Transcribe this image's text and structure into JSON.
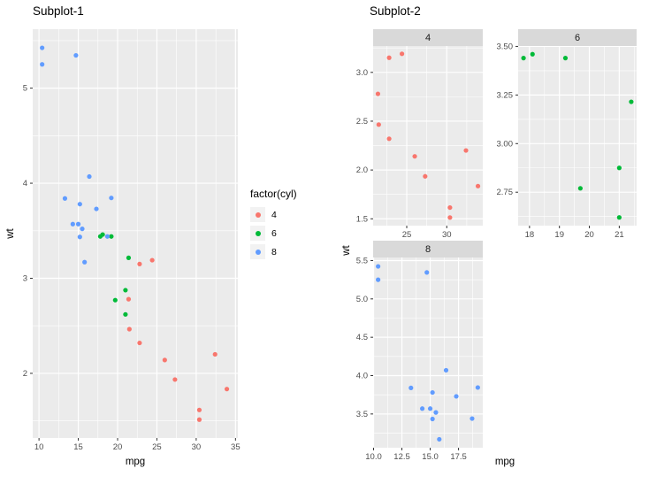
{
  "theme": {
    "background": "#FFFFFF",
    "panel_bg": "#EBEBEB",
    "strip_bg": "#D9D9D9",
    "grid": "#FFFFFF",
    "tick_text": "#4D4D4D",
    "tick_mark": "#333333",
    "strip_text": "#1A1A1A",
    "key_bg": "#F2F2F2"
  },
  "legend": {
    "title": "factor(cyl)",
    "items": [
      {
        "label": "4",
        "color": "#F8766D"
      },
      {
        "label": "6",
        "color": "#00BA38"
      },
      {
        "label": "8",
        "color": "#619CFF"
      }
    ]
  },
  "chart_data": [
    {
      "type": "scatter",
      "title": "Subplot-1",
      "xlabel": "mpg",
      "ylabel": "wt",
      "legend_title": "factor(cyl)",
      "legend_position": "right",
      "grid": true,
      "xlim": [
        9.2,
        35.3
      ],
      "ylim": [
        1.32,
        5.62
      ],
      "xticks": [
        10,
        15,
        20,
        25,
        30,
        35
      ],
      "xtick_labels": [
        "10",
        "15",
        "20",
        "25",
        "30",
        "35"
      ],
      "yticks": [
        2,
        3,
        4,
        5
      ],
      "ytick_labels": [
        "2",
        "3",
        "4",
        "5"
      ],
      "series": [
        {
          "name": "4",
          "color": "#F8766D",
          "points": [
            [
              22.8,
              2.32
            ],
            [
              24.4,
              3.19
            ],
            [
              22.8,
              3.15
            ],
            [
              32.4,
              2.2
            ],
            [
              30.4,
              1.615
            ],
            [
              33.9,
              1.835
            ],
            [
              21.5,
              2.465
            ],
            [
              27.3,
              1.935
            ],
            [
              26.0,
              2.14
            ],
            [
              30.4,
              1.513
            ],
            [
              21.4,
              2.78
            ]
          ]
        },
        {
          "name": "6",
          "color": "#00BA38",
          "points": [
            [
              21.0,
              2.62
            ],
            [
              21.0,
              2.875
            ],
            [
              21.4,
              3.215
            ],
            [
              18.1,
              3.46
            ],
            [
              19.2,
              3.44
            ],
            [
              17.8,
              3.44
            ],
            [
              19.7,
              2.77
            ]
          ]
        },
        {
          "name": "8",
          "color": "#619CFF",
          "points": [
            [
              18.7,
              3.44
            ],
            [
              14.3,
              3.57
            ],
            [
              16.4,
              4.07
            ],
            [
              17.3,
              3.73
            ],
            [
              15.2,
              3.78
            ],
            [
              10.4,
              5.25
            ],
            [
              10.4,
              5.424
            ],
            [
              14.7,
              5.345
            ],
            [
              15.5,
              3.52
            ],
            [
              15.2,
              3.435
            ],
            [
              13.3,
              3.84
            ],
            [
              19.2,
              3.845
            ],
            [
              15.8,
              3.17
            ],
            [
              15.0,
              3.57
            ]
          ]
        }
      ]
    },
    {
      "type": "scatter",
      "title": "Subplot-2",
      "xlabel": "mpg",
      "ylabel": "wt",
      "facet_by": "cyl",
      "grid": true,
      "facets": [
        {
          "label": "4",
          "color": "#F8766D",
          "xlim": [
            20.8,
            34.5
          ],
          "ylim": [
            1.43,
            3.27
          ],
          "xticks": [
            25,
            30
          ],
          "xtick_labels": [
            "25",
            "30"
          ],
          "yticks": [
            1.5,
            2.0,
            2.5,
            3.0
          ],
          "ytick_labels": [
            "1.5",
            "2.0",
            "2.5",
            "3.0"
          ],
          "points": [
            [
              22.8,
              2.32
            ],
            [
              24.4,
              3.19
            ],
            [
              22.8,
              3.15
            ],
            [
              32.4,
              2.2
            ],
            [
              30.4,
              1.615
            ],
            [
              33.9,
              1.835
            ],
            [
              21.5,
              2.465
            ],
            [
              27.3,
              1.935
            ],
            [
              26.0,
              2.14
            ],
            [
              30.4,
              1.513
            ],
            [
              21.4,
              2.78
            ]
          ]
        },
        {
          "label": "6",
          "color": "#00BA38",
          "xlim": [
            17.62,
            21.58
          ],
          "ylim": [
            2.578,
            3.502
          ],
          "xticks": [
            18,
            19,
            20,
            21
          ],
          "xtick_labels": [
            "18",
            "19",
            "20",
            "21"
          ],
          "yticks": [
            2.75,
            3.0,
            3.25,
            3.5
          ],
          "ytick_labels": [
            "2.75",
            "3.00",
            "3.25",
            "3.50"
          ],
          "points": [
            [
              21.0,
              2.62
            ],
            [
              21.0,
              2.875
            ],
            [
              21.4,
              3.215
            ],
            [
              18.1,
              3.46
            ],
            [
              19.2,
              3.44
            ],
            [
              17.8,
              3.44
            ],
            [
              19.7,
              2.77
            ]
          ]
        },
        {
          "label": "8",
          "color": "#619CFF",
          "xlim": [
            9.96,
            19.64
          ],
          "ylim": [
            3.06,
            5.54
          ],
          "xticks": [
            10.0,
            12.5,
            15.0,
            17.5
          ],
          "xtick_labels": [
            "10.0",
            "12.5",
            "15.0",
            "17.5"
          ],
          "yticks": [
            3.5,
            4.0,
            4.5,
            5.0,
            5.5
          ],
          "ytick_labels": [
            "3.5",
            "4.0",
            "4.5",
            "5.0",
            "5.5"
          ],
          "points": [
            [
              18.7,
              3.44
            ],
            [
              14.3,
              3.57
            ],
            [
              16.4,
              4.07
            ],
            [
              17.3,
              3.73
            ],
            [
              15.2,
              3.78
            ],
            [
              10.4,
              5.25
            ],
            [
              10.4,
              5.424
            ],
            [
              14.7,
              5.345
            ],
            [
              15.5,
              3.52
            ],
            [
              15.2,
              3.435
            ],
            [
              13.3,
              3.84
            ],
            [
              19.2,
              3.845
            ],
            [
              15.8,
              3.17
            ],
            [
              15.0,
              3.57
            ]
          ]
        }
      ]
    }
  ]
}
